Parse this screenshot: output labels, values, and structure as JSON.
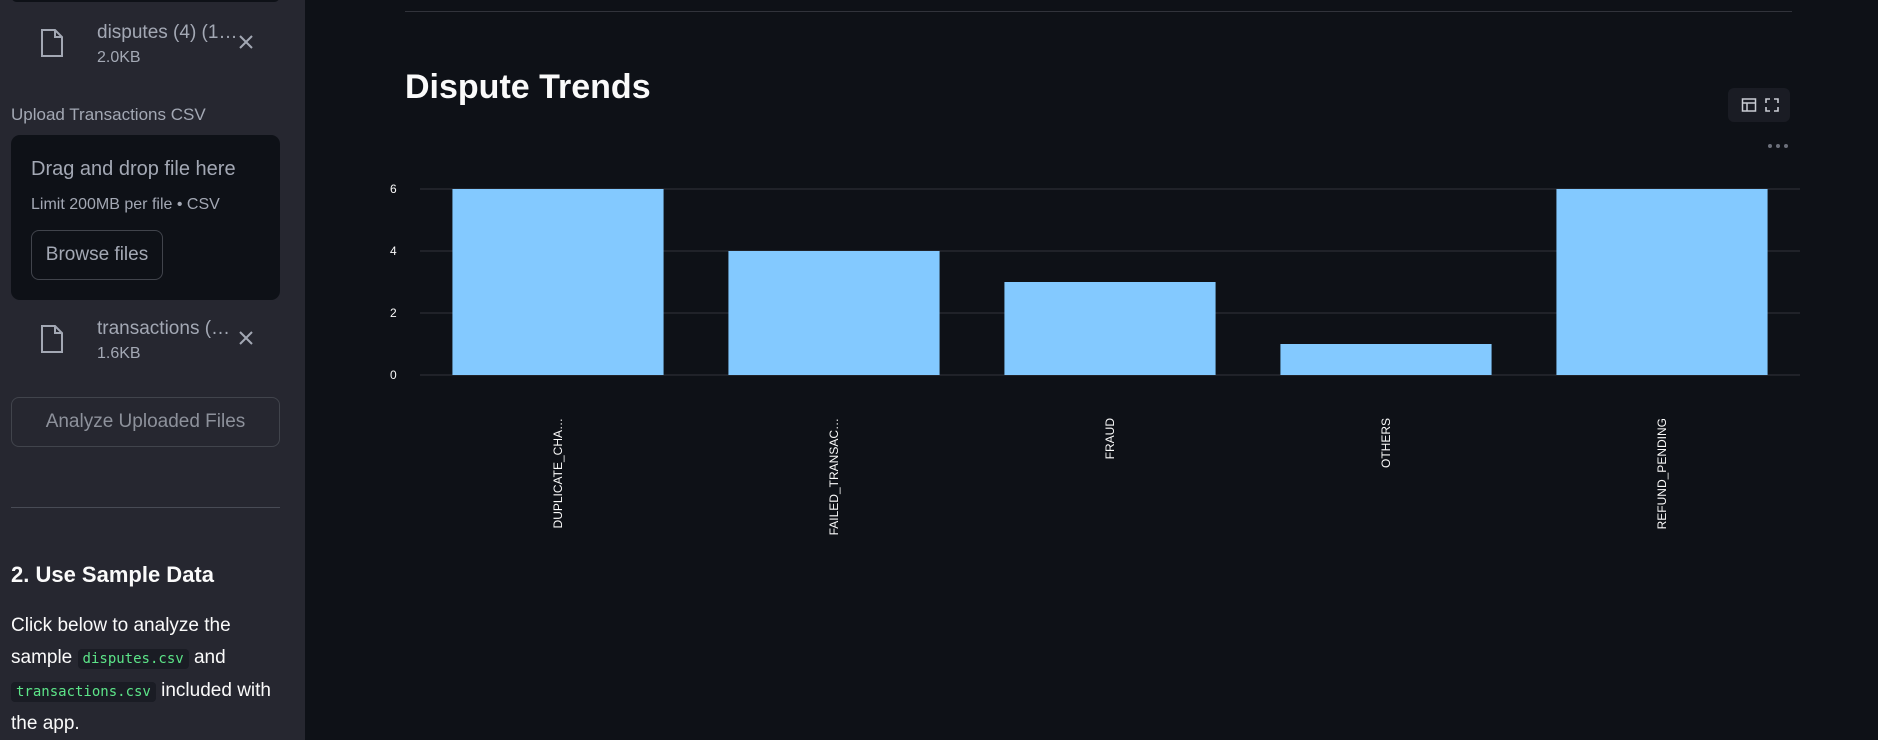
{
  "sidebar": {
    "files": [
      {
        "name": "disputes (4) (1…",
        "size": "2.0KB"
      },
      {
        "name": "transactions (…",
        "size": "1.6KB"
      }
    ],
    "upload_label": "Upload Transactions CSV",
    "dropzone": {
      "title": "Drag and drop file here",
      "limit": "Limit 200MB per file • CSV",
      "browse_label": "Browse files"
    },
    "analyze_label": "Analyze Uploaded Files",
    "sample_section": {
      "title": "2. Use Sample Data",
      "text_1": "Click below to analyze the sample",
      "code_1": "disputes.csv",
      "text_2": "and",
      "code_2": "transactions.csv",
      "text_3": "included with the app."
    }
  },
  "main": {
    "title": "Dispute Trends",
    "icons": [
      "table-icon",
      "fullscreen-icon",
      "more-options-icon"
    ]
  },
  "chart_data": {
    "type": "bar",
    "categories": [
      "DUPLICATE_CHA…",
      "FAILED_TRANSAC…",
      "FRAUD",
      "OTHERS",
      "REFUND_PENDING"
    ],
    "values": [
      6,
      4,
      3,
      1,
      6
    ],
    "ylim": [
      0,
      6
    ],
    "yticks": [
      0,
      2,
      4,
      6
    ],
    "grid": true,
    "bar_color": "#83c9ff"
  },
  "colors": {
    "background": "#0e1117",
    "sidebar": "#262730",
    "bar": "#83c9ff",
    "code_text": "#5ce488"
  }
}
